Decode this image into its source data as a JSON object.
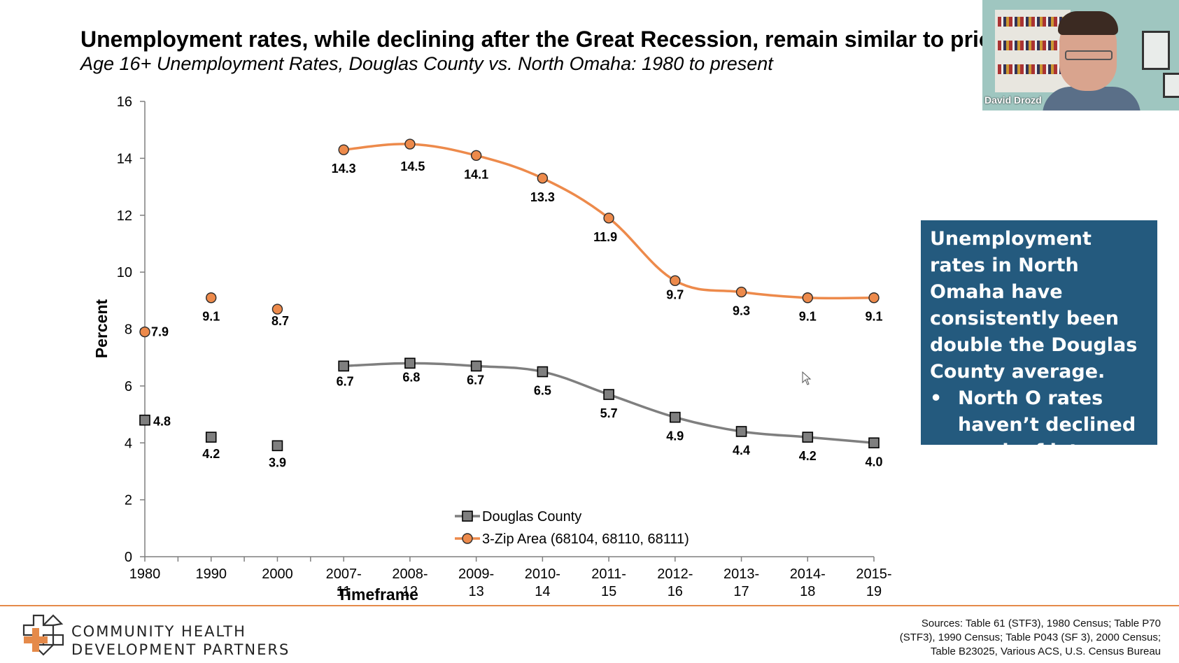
{
  "slide": {
    "title": "Unemployment rates, while declining after the Great Recession, remain similar to prior",
    "subtitle": "Age 16+ Unemployment Rates, Douglas County vs. North Omaha: 1980 to present"
  },
  "callout": {
    "lines": [
      "Unemployment rates in North Omaha have consistently been double the Douglas County average."
    ],
    "bullets": [
      "North O rates haven’t declined much of late."
    ],
    "bullet_symbol": "•",
    "background": "#245a7e"
  },
  "webcam": {
    "name": "David Drozd"
  },
  "footer": {
    "logo_line1": "COMMUNITY HEALTH",
    "logo_line2": "DEVELOPMENT PARTNERS",
    "sources": [
      "Sources: Table 61 (STF3), 1980 Census; Table P70",
      "(STF3), 1990 Census; Table P043 (SF 3), 2000 Census;",
      "Table B23025, Various ACS, U.S. Census Bureau"
    ],
    "accent": "#e58a4a"
  },
  "chart_data": {
    "type": "line",
    "xlabel": "Timeframe",
    "ylabel": "Percent",
    "ylim": [
      0,
      16
    ],
    "yticks": [
      0,
      2,
      4,
      6,
      8,
      10,
      12,
      14,
      16
    ],
    "grid": false,
    "legend_position": "bottom-center",
    "categories": [
      [
        "1980"
      ],
      [
        "1990"
      ],
      [
        "2000"
      ],
      [
        "2007-",
        "11"
      ],
      [
        "2008-",
        "12"
      ],
      [
        "2009-",
        "13"
      ],
      [
        "2010-",
        "14"
      ],
      [
        "2011-",
        "15"
      ],
      [
        "2012-",
        "16"
      ],
      [
        "2013-",
        "17"
      ],
      [
        "2014-",
        "18"
      ],
      [
        "2015-",
        "19"
      ]
    ],
    "series": [
      {
        "name": "Douglas County",
        "marker": "square",
        "color": "#7f7f7f",
        "fill": "#7f7f7f",
        "values": [
          4.8,
          4.2,
          3.9,
          6.7,
          6.8,
          6.7,
          6.5,
          5.7,
          4.9,
          4.4,
          4.2,
          4.0
        ],
        "labels": [
          "4.8",
          "4.2",
          "3.9",
          "6.7",
          "6.8",
          "6.7",
          "6.5",
          "5.7",
          "4.9",
          "4.4",
          "4.2",
          "4.0"
        ],
        "connected_from_index": 3
      },
      {
        "name": "3-Zip Area (68104, 68110, 68111)",
        "marker": "circle",
        "color": "#ed8a4b",
        "fill": "#ed8a4b",
        "values": [
          7.9,
          9.1,
          8.7,
          14.3,
          14.5,
          14.1,
          13.3,
          11.9,
          9.7,
          9.3,
          9.1,
          9.1
        ],
        "labels": [
          "7.9",
          "9.1",
          "8.7",
          "14.3",
          "14.5",
          "14.1",
          "13.3",
          "11.9",
          "9.7",
          "9.3",
          "9.1",
          "9.1"
        ],
        "connected_from_index": 3
      }
    ]
  }
}
